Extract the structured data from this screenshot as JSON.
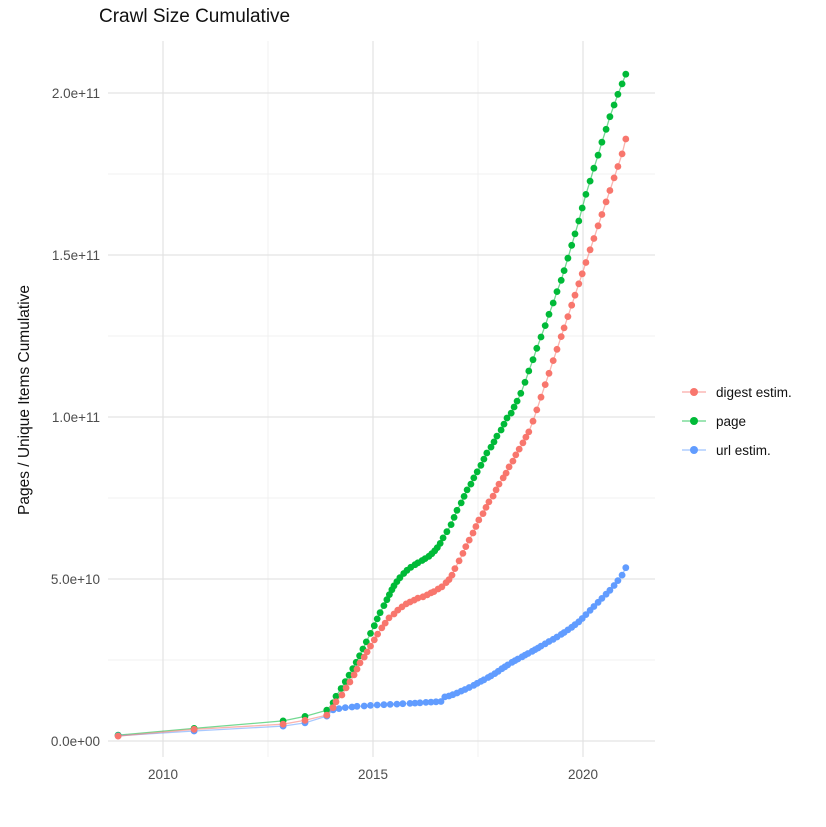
{
  "page": {
    "title": "Crawl Size Cumulative"
  },
  "chart_data": {
    "type": "scatter",
    "title": "Crawl Size Cumulative",
    "xlabel": "",
    "ylabel": "Pages / Unique Items Cumulative",
    "value_unit": "billions (1e9) of pages / unique items",
    "x_axis": {
      "range": [
        2008.7,
        2021.7
      ],
      "ticks": [
        {
          "value": 2010,
          "label": "2010"
        },
        {
          "value": 2015,
          "label": "2015"
        },
        {
          "value": 2020,
          "label": "2020"
        }
      ],
      "minor": [
        2012.5,
        2017.5
      ]
    },
    "y_axis": {
      "range_billions": [
        -8,
        216
      ],
      "ticks": [
        {
          "value": 0,
          "label": "0.0e+00"
        },
        {
          "value": 50,
          "label": "5.0e+10"
        },
        {
          "value": 100,
          "label": "1.0e+11"
        },
        {
          "value": 150,
          "label": "1.5e+11"
        },
        {
          "value": 200,
          "label": "2.0e+11"
        }
      ],
      "minor": [
        25,
        75,
        125,
        175
      ]
    },
    "grid": {
      "major_color": "#e3e3e3",
      "minor_color": "#f0f0f0",
      "background": "#ffffff"
    },
    "tick_label_color": "#4d4d4d",
    "legend": {
      "position": "right"
    },
    "series": [
      {
        "name": "digest estim.",
        "color": "#F8766D",
        "points": [
          [
            2008.93,
            1.5
          ],
          [
            2010.74,
            3.6
          ],
          [
            2012.86,
            5.2
          ],
          [
            2013.38,
            6.4
          ],
          [
            2013.9,
            8.0
          ],
          [
            2014.05,
            10.3
          ],
          [
            2014.12,
            12.1
          ],
          [
            2014.26,
            14.2
          ],
          [
            2014.36,
            16.4
          ],
          [
            2014.45,
            18.2
          ],
          [
            2014.55,
            20.4
          ],
          [
            2014.62,
            22.2
          ],
          [
            2014.69,
            24.1
          ],
          [
            2014.79,
            25.9
          ],
          [
            2014.86,
            27.5
          ],
          [
            2014.94,
            29.3
          ],
          [
            2015.03,
            31.2
          ],
          [
            2015.11,
            33.0
          ],
          [
            2015.21,
            34.9
          ],
          [
            2015.29,
            36.4
          ],
          [
            2015.38,
            38.0
          ],
          [
            2015.5,
            39.2
          ],
          [
            2015.59,
            40.4
          ],
          [
            2015.69,
            41.4
          ],
          [
            2015.79,
            42.3
          ],
          [
            2015.88,
            42.9
          ],
          [
            2015.98,
            43.5
          ],
          [
            2016.07,
            44.1
          ],
          [
            2016.19,
            44.5
          ],
          [
            2016.29,
            45.1
          ],
          [
            2016.38,
            45.7
          ],
          [
            2016.45,
            46.1
          ],
          [
            2016.55,
            46.9
          ],
          [
            2016.64,
            47.6
          ],
          [
            2016.74,
            48.9
          ],
          [
            2016.81,
            49.8
          ],
          [
            2016.88,
            51.2
          ],
          [
            2016.95,
            53.2
          ],
          [
            2017.05,
            55.6
          ],
          [
            2017.14,
            57.9
          ],
          [
            2017.21,
            60.0
          ],
          [
            2017.29,
            62.0
          ],
          [
            2017.38,
            64.2
          ],
          [
            2017.45,
            66.2
          ],
          [
            2017.52,
            68.2
          ],
          [
            2017.62,
            70.2
          ],
          [
            2017.69,
            72.1
          ],
          [
            2017.76,
            73.8
          ],
          [
            2017.86,
            75.6
          ],
          [
            2017.93,
            77.5
          ],
          [
            2018.0,
            79.3
          ],
          [
            2018.1,
            81.2
          ],
          [
            2018.17,
            82.7
          ],
          [
            2018.24,
            84.6
          ],
          [
            2018.33,
            86.4
          ],
          [
            2018.4,
            88.3
          ],
          [
            2018.48,
            90.1
          ],
          [
            2018.57,
            92.0
          ],
          [
            2018.64,
            93.8
          ],
          [
            2018.71,
            95.4
          ],
          [
            2018.81,
            98.7
          ],
          [
            2018.9,
            102.2
          ],
          [
            2019.0,
            106.1
          ],
          [
            2019.1,
            110.0
          ],
          [
            2019.19,
            113.5
          ],
          [
            2019.29,
            117.4
          ],
          [
            2019.38,
            120.9
          ],
          [
            2019.48,
            124.8
          ],
          [
            2019.55,
            127.5
          ],
          [
            2019.64,
            131.0
          ],
          [
            2019.73,
            134.5
          ],
          [
            2019.81,
            137.6
          ],
          [
            2019.9,
            141.1
          ],
          [
            2019.98,
            144.2
          ],
          [
            2020.07,
            147.7
          ],
          [
            2020.17,
            151.6
          ],
          [
            2020.26,
            155.1
          ],
          [
            2020.36,
            159.0
          ],
          [
            2020.45,
            162.5
          ],
          [
            2020.55,
            166.4
          ],
          [
            2020.64,
            169.9
          ],
          [
            2020.74,
            173.8
          ],
          [
            2020.83,
            177.3
          ],
          [
            2020.93,
            181.2
          ],
          [
            2021.02,
            185.8
          ]
        ]
      },
      {
        "name": "page",
        "color": "#00BA38",
        "points": [
          [
            2008.93,
            1.8
          ],
          [
            2010.74,
            3.9
          ],
          [
            2012.86,
            6.2
          ],
          [
            2013.38,
            7.6
          ],
          [
            2013.9,
            9.5
          ],
          [
            2014.05,
            11.8
          ],
          [
            2014.12,
            13.8
          ],
          [
            2014.24,
            16.2
          ],
          [
            2014.34,
            18.3
          ],
          [
            2014.43,
            20.3
          ],
          [
            2014.52,
            22.3
          ],
          [
            2014.6,
            24.3
          ],
          [
            2014.68,
            26.3
          ],
          [
            2014.76,
            28.4
          ],
          [
            2014.84,
            30.6
          ],
          [
            2014.94,
            33.2
          ],
          [
            2015.03,
            35.6
          ],
          [
            2015.1,
            37.7
          ],
          [
            2015.17,
            39.6
          ],
          [
            2015.26,
            41.8
          ],
          [
            2015.33,
            43.6
          ],
          [
            2015.39,
            45.2
          ],
          [
            2015.45,
            46.7
          ],
          [
            2015.5,
            47.9
          ],
          [
            2015.57,
            49.2
          ],
          [
            2015.64,
            50.4
          ],
          [
            2015.73,
            51.7
          ],
          [
            2015.81,
            52.7
          ],
          [
            2015.9,
            53.6
          ],
          [
            2016.0,
            54.4
          ],
          [
            2016.07,
            55.0
          ],
          [
            2016.17,
            55.7
          ],
          [
            2016.24,
            56.3
          ],
          [
            2016.33,
            57.0
          ],
          [
            2016.4,
            57.8
          ],
          [
            2016.47,
            58.7
          ],
          [
            2016.53,
            59.7
          ],
          [
            2016.6,
            61.0
          ],
          [
            2016.67,
            62.7
          ],
          [
            2016.76,
            64.6
          ],
          [
            2016.86,
            66.8
          ],
          [
            2016.93,
            69.0
          ],
          [
            2017.0,
            71.2
          ],
          [
            2017.1,
            73.5
          ],
          [
            2017.17,
            75.5
          ],
          [
            2017.24,
            77.5
          ],
          [
            2017.33,
            79.3
          ],
          [
            2017.4,
            81.2
          ],
          [
            2017.48,
            83.1
          ],
          [
            2017.57,
            85.1
          ],
          [
            2017.64,
            87.0
          ],
          [
            2017.71,
            88.9
          ],
          [
            2017.81,
            90.7
          ],
          [
            2017.88,
            92.3
          ],
          [
            2017.95,
            94.1
          ],
          [
            2018.05,
            96.0
          ],
          [
            2018.12,
            97.8
          ],
          [
            2018.19,
            99.7
          ],
          [
            2018.29,
            101.2
          ],
          [
            2018.36,
            103.1
          ],
          [
            2018.43,
            104.9
          ],
          [
            2018.52,
            107.3
          ],
          [
            2018.62,
            110.7
          ],
          [
            2018.71,
            114.2
          ],
          [
            2018.81,
            117.7
          ],
          [
            2018.9,
            121.2
          ],
          [
            2019.0,
            124.7
          ],
          [
            2019.1,
            128.2
          ],
          [
            2019.19,
            131.7
          ],
          [
            2019.29,
            135.2
          ],
          [
            2019.38,
            138.7
          ],
          [
            2019.48,
            142.2
          ],
          [
            2019.55,
            145.2
          ],
          [
            2019.64,
            149.0
          ],
          [
            2019.73,
            153.0
          ],
          [
            2019.81,
            156.5
          ],
          [
            2019.9,
            160.5
          ],
          [
            2019.98,
            164.5
          ],
          [
            2020.07,
            168.7
          ],
          [
            2020.17,
            172.8
          ],
          [
            2020.26,
            176.8
          ],
          [
            2020.36,
            180.8
          ],
          [
            2020.45,
            184.8
          ],
          [
            2020.55,
            188.8
          ],
          [
            2020.64,
            192.7
          ],
          [
            2020.74,
            196.3
          ],
          [
            2020.83,
            199.6
          ],
          [
            2020.93,
            202.8
          ],
          [
            2021.02,
            205.8
          ]
        ]
      },
      {
        "name": "url estim.",
        "color": "#619CFF",
        "points": [
          [
            2008.93,
            1.6
          ],
          [
            2010.74,
            3.1
          ],
          [
            2012.86,
            4.6
          ],
          [
            2013.38,
            5.6
          ],
          [
            2013.9,
            7.7
          ],
          [
            2014.05,
            9.6
          ],
          [
            2014.19,
            10.0
          ],
          [
            2014.34,
            10.3
          ],
          [
            2014.5,
            10.5
          ],
          [
            2014.62,
            10.7
          ],
          [
            2014.79,
            10.8
          ],
          [
            2014.94,
            11.0
          ],
          [
            2015.1,
            11.1
          ],
          [
            2015.26,
            11.2
          ],
          [
            2015.41,
            11.3
          ],
          [
            2015.57,
            11.4
          ],
          [
            2015.71,
            11.5
          ],
          [
            2015.88,
            11.6
          ],
          [
            2016.0,
            11.7
          ],
          [
            2016.12,
            11.8
          ],
          [
            2016.26,
            11.9
          ],
          [
            2016.38,
            12.0
          ],
          [
            2016.5,
            12.1
          ],
          [
            2016.62,
            12.2
          ],
          [
            2016.71,
            13.6
          ],
          [
            2016.81,
            13.9
          ],
          [
            2016.9,
            14.3
          ],
          [
            2017.0,
            14.8
          ],
          [
            2017.1,
            15.4
          ],
          [
            2017.19,
            15.9
          ],
          [
            2017.29,
            16.5
          ],
          [
            2017.4,
            17.2
          ],
          [
            2017.48,
            17.8
          ],
          [
            2017.57,
            18.4
          ],
          [
            2017.64,
            18.9
          ],
          [
            2017.74,
            19.6
          ],
          [
            2017.81,
            20.1
          ],
          [
            2017.9,
            20.8
          ],
          [
            2017.98,
            21.5
          ],
          [
            2018.07,
            22.3
          ],
          [
            2018.14,
            22.9
          ],
          [
            2018.21,
            23.5
          ],
          [
            2018.31,
            24.3
          ],
          [
            2018.38,
            24.8
          ],
          [
            2018.45,
            25.3
          ],
          [
            2018.55,
            26.0
          ],
          [
            2018.62,
            26.5
          ],
          [
            2018.69,
            27.0
          ],
          [
            2018.79,
            27.7
          ],
          [
            2018.86,
            28.2
          ],
          [
            2018.93,
            28.7
          ],
          [
            2019.0,
            29.3
          ],
          [
            2019.1,
            30.0
          ],
          [
            2019.19,
            30.7
          ],
          [
            2019.29,
            31.4
          ],
          [
            2019.38,
            32.1
          ],
          [
            2019.48,
            32.9
          ],
          [
            2019.55,
            33.5
          ],
          [
            2019.64,
            34.3
          ],
          [
            2019.73,
            35.1
          ],
          [
            2019.81,
            35.9
          ],
          [
            2019.9,
            36.8
          ],
          [
            2019.98,
            37.8
          ],
          [
            2020.07,
            39.0
          ],
          [
            2020.17,
            40.3
          ],
          [
            2020.26,
            41.5
          ],
          [
            2020.36,
            42.8
          ],
          [
            2020.45,
            44.0
          ],
          [
            2020.55,
            45.3
          ],
          [
            2020.64,
            46.5
          ],
          [
            2020.74,
            48.0
          ],
          [
            2020.83,
            49.5
          ],
          [
            2020.93,
            51.2
          ],
          [
            2021.02,
            53.5
          ]
        ]
      }
    ]
  }
}
